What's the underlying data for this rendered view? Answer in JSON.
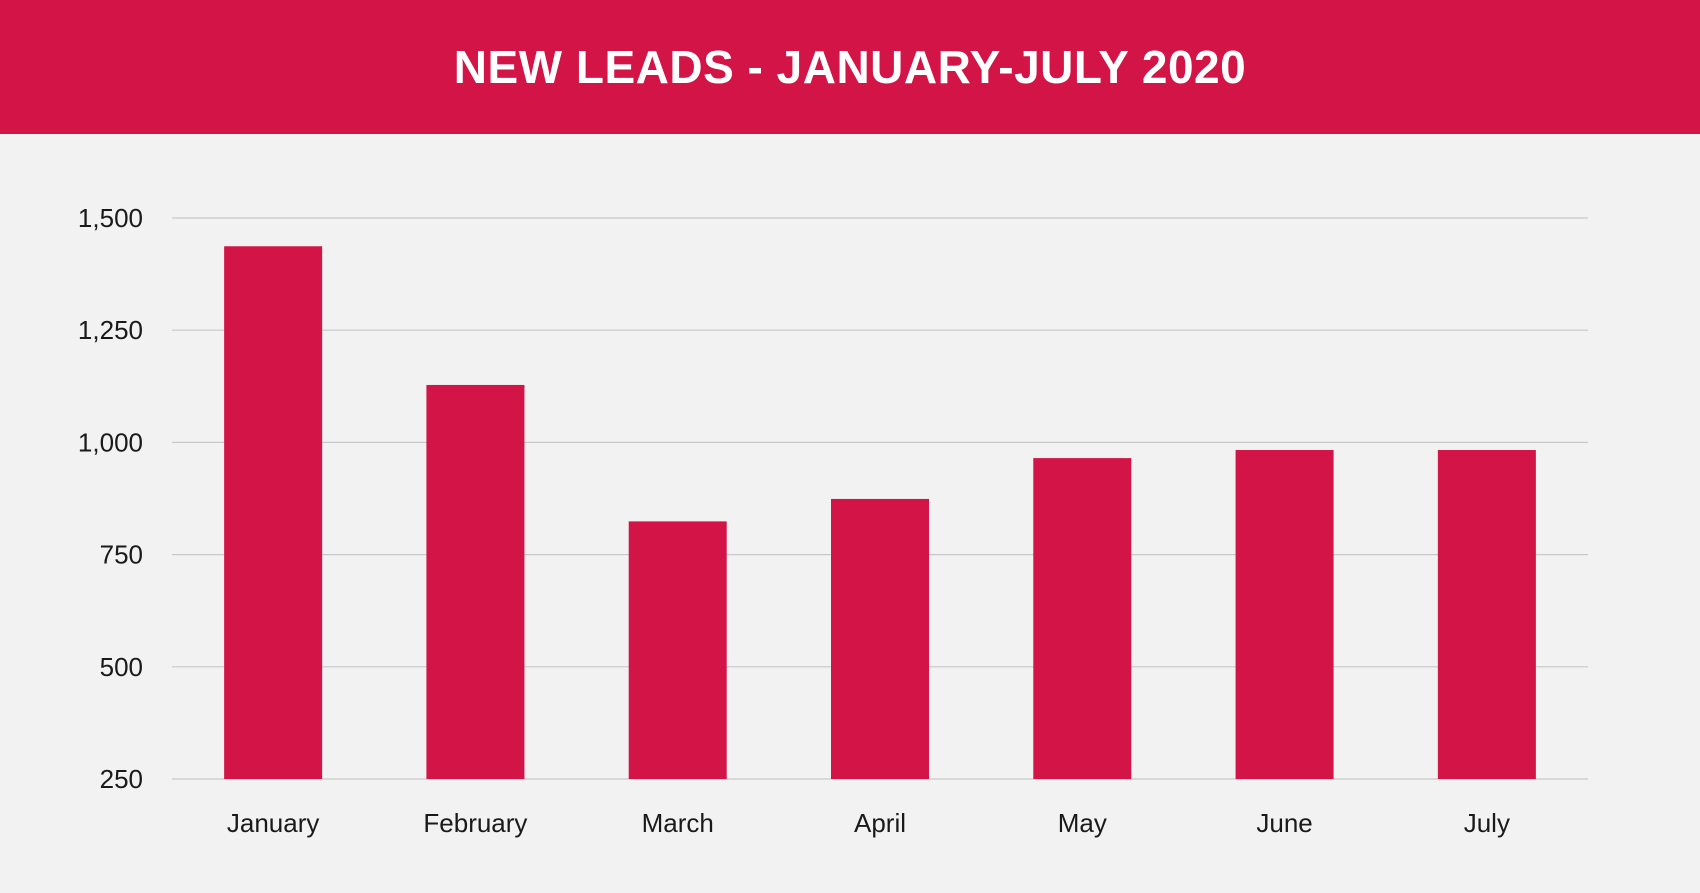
{
  "header": {
    "title": "NEW LEADS - JANUARY-JULY 2020"
  },
  "colors": {
    "bar": "#d21446",
    "header_bg": "#d21446",
    "background": "#f2f2f2",
    "grid": "#c8c8c8",
    "text": "#1a1a1a"
  },
  "chart_data": {
    "type": "bar",
    "title": "NEW LEADS - JANUARY-JULY 2020",
    "xlabel": "",
    "ylabel": "",
    "categories": [
      "January",
      "February",
      "March",
      "April",
      "May",
      "June",
      "July"
    ],
    "values": [
      1437,
      1128,
      824,
      874,
      965,
      983,
      983
    ],
    "ylim": [
      250,
      1500
    ],
    "yticks": [
      250,
      500,
      750,
      1000,
      1250,
      1500
    ],
    "ytick_labels": [
      "250",
      "500",
      "750",
      "1,000",
      "1,250",
      "1,500"
    ],
    "grid": true,
    "legend": "none"
  }
}
